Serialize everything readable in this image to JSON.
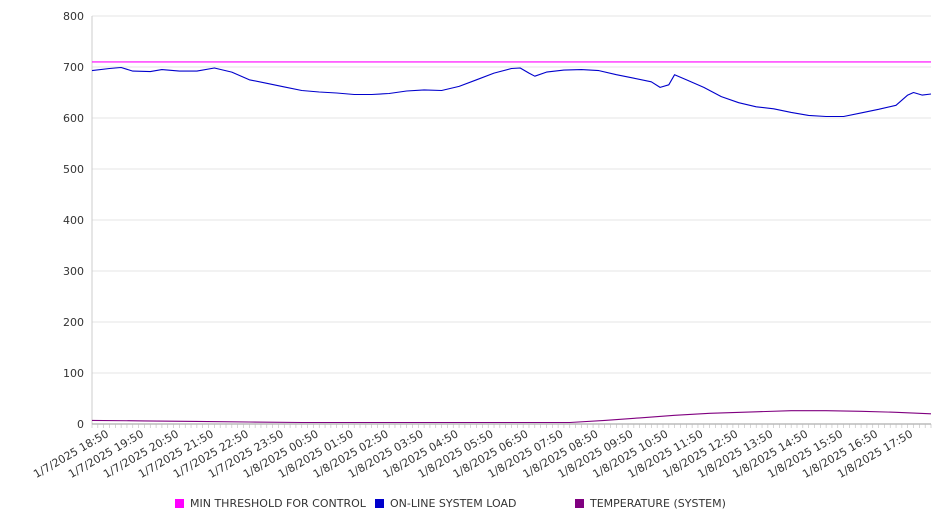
{
  "chart_data": {
    "type": "line",
    "title": "",
    "xlabel": "",
    "ylabel": "",
    "ylim": [
      0,
      800
    ],
    "yticks": [
      "0",
      "100",
      "200",
      "300",
      "400",
      "500",
      "600",
      "700",
      "800"
    ],
    "x_tick_labels": [
      "1/7/2025 18:50",
      "1/7/2025 19:50",
      "1/7/2025 20:50",
      "1/7/2025 21:50",
      "1/7/2025 22:50",
      "1/7/2025 23:50",
      "1/8/2025 00:50",
      "1/8/2025 01:50",
      "1/8/2025 02:50",
      "1/8/2025 03:50",
      "1/8/2025 04:50",
      "1/8/2025 05:50",
      "1/8/2025 06:50",
      "1/8/2025 07:50",
      "1/8/2025 08:50",
      "1/8/2025 09:50",
      "1/8/2025 10:50",
      "1/8/2025 11:50",
      "1/8/2025 12:50",
      "1/8/2025 13:50",
      "1/8/2025 14:50",
      "1/8/2025 15:50",
      "1/8/2025 16:50",
      "1/8/2025 17:50"
    ],
    "x_range": [
      "1/7/2025 18:20",
      "1/8/2025 18:20"
    ],
    "grid": true,
    "legend_position": "bottom",
    "series": [
      {
        "name": "MIN THRESHOLD FOR CONTROL",
        "color": "#ff00ff",
        "points": [
          [
            "1/7/2025 18:20",
            710
          ],
          [
            "1/8/2025 18:20",
            710
          ]
        ]
      },
      {
        "name": "ON-LINE SYSTEM LOAD",
        "color": "#0000cc",
        "points": [
          [
            "1/7/2025 18:20",
            693
          ],
          [
            "1/7/2025 18:50",
            697
          ],
          [
            "1/7/2025 19:10",
            699
          ],
          [
            "1/7/2025 19:30",
            692
          ],
          [
            "1/7/2025 20:00",
            691
          ],
          [
            "1/7/2025 20:20",
            695
          ],
          [
            "1/7/2025 20:50",
            692
          ],
          [
            "1/7/2025 21:20",
            692
          ],
          [
            "1/7/2025 21:50",
            698
          ],
          [
            "1/7/2025 22:20",
            690
          ],
          [
            "1/7/2025 22:50",
            675
          ],
          [
            "1/7/2025 23:20",
            668
          ],
          [
            "1/7/2025 23:50",
            661
          ],
          [
            "1/8/2025 00:20",
            654
          ],
          [
            "1/8/2025 00:50",
            651
          ],
          [
            "1/8/2025 01:20",
            649
          ],
          [
            "1/8/2025 01:50",
            646
          ],
          [
            "1/8/2025 02:20",
            646
          ],
          [
            "1/8/2025 02:50",
            648
          ],
          [
            "1/8/2025 03:20",
            653
          ],
          [
            "1/8/2025 03:50",
            655
          ],
          [
            "1/8/2025 04:20",
            654
          ],
          [
            "1/8/2025 04:50",
            662
          ],
          [
            "1/8/2025 05:20",
            675
          ],
          [
            "1/8/2025 05:50",
            688
          ],
          [
            "1/8/2025 06:20",
            697
          ],
          [
            "1/8/2025 06:35",
            698
          ],
          [
            "1/8/2025 06:50",
            688
          ],
          [
            "1/8/2025 07:00",
            682
          ],
          [
            "1/8/2025 07:20",
            690
          ],
          [
            "1/8/2025 07:50",
            694
          ],
          [
            "1/8/2025 08:20",
            695
          ],
          [
            "1/8/2025 08:50",
            693
          ],
          [
            "1/8/2025 09:20",
            685
          ],
          [
            "1/8/2025 09:50",
            678
          ],
          [
            "1/8/2025 10:20",
            671
          ],
          [
            "1/8/2025 10:35",
            660
          ],
          [
            "1/8/2025 10:50",
            665
          ],
          [
            "1/8/2025 11:00",
            685
          ],
          [
            "1/8/2025 11:20",
            675
          ],
          [
            "1/8/2025 11:50",
            660
          ],
          [
            "1/8/2025 12:20",
            642
          ],
          [
            "1/8/2025 12:50",
            630
          ],
          [
            "1/8/2025 13:20",
            622
          ],
          [
            "1/8/2025 13:50",
            618
          ],
          [
            "1/8/2025 14:20",
            611
          ],
          [
            "1/8/2025 14:50",
            605
          ],
          [
            "1/8/2025 15:20",
            603
          ],
          [
            "1/8/2025 15:50",
            603
          ],
          [
            "1/8/2025 16:20",
            610
          ],
          [
            "1/8/2025 16:50",
            617
          ],
          [
            "1/8/2025 17:20",
            625
          ],
          [
            "1/8/2025 17:40",
            645
          ],
          [
            "1/8/2025 17:50",
            650
          ],
          [
            "1/8/2025 18:05",
            645
          ],
          [
            "1/8/2025 18:20",
            647
          ]
        ]
      },
      {
        "name": "TEMPERATURE (SYSTEM)",
        "color": "#800080",
        "points": [
          [
            "1/7/2025 18:20",
            7
          ],
          [
            "1/7/2025 19:50",
            6
          ],
          [
            "1/7/2025 21:20",
            5
          ],
          [
            "1/7/2025 22:50",
            4
          ],
          [
            "1/8/2025 00:20",
            3
          ],
          [
            "1/8/2025 02:20",
            3
          ],
          [
            "1/8/2025 04:20",
            3
          ],
          [
            "1/8/2025 06:20",
            3
          ],
          [
            "1/8/2025 08:00",
            3
          ],
          [
            "1/8/2025 09:00",
            7
          ],
          [
            "1/8/2025 10:00",
            12
          ],
          [
            "1/8/2025 11:00",
            17
          ],
          [
            "1/8/2025 12:00",
            21
          ],
          [
            "1/8/2025 13:20",
            24
          ],
          [
            "1/8/2025 14:20",
            26
          ],
          [
            "1/8/2025 15:20",
            26
          ],
          [
            "1/8/2025 16:20",
            25
          ],
          [
            "1/8/2025 17:20",
            23
          ],
          [
            "1/8/2025 18:20",
            20
          ]
        ]
      }
    ]
  }
}
